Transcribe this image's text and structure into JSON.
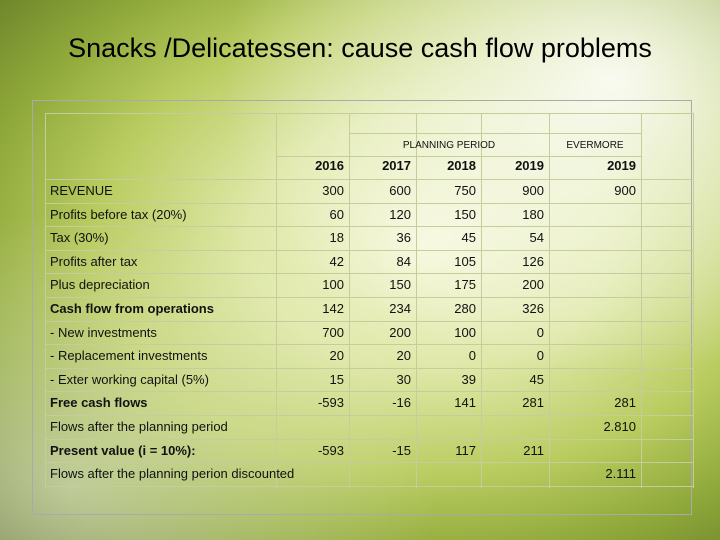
{
  "title": "Snacks /Delicatessen: cause cash flow problems",
  "table": {
    "group_headers": [
      {
        "label": "PLANNING PERIOD",
        "from": 1,
        "to": 3
      },
      {
        "label": "EVERMORE",
        "from": 4,
        "to": 4
      }
    ],
    "years": [
      "2016",
      "2017",
      "2018",
      "2019",
      "2019"
    ],
    "rows": [
      {
        "label": "REVENUE",
        "cells": [
          300,
          600,
          750,
          900,
          900
        ]
      },
      {
        "label": "Profits before tax (20%)",
        "cells": [
          60,
          120,
          150,
          180,
          null
        ]
      },
      {
        "label": "Tax (30%)",
        "cells": [
          18,
          36,
          45,
          54,
          null
        ]
      },
      {
        "label": "Profits after tax",
        "cells": [
          42,
          84,
          105,
          126,
          null
        ]
      },
      {
        "label": "Plus depreciation",
        "cells": [
          100,
          150,
          175,
          200,
          null
        ]
      },
      {
        "label": "Cash flow from operations",
        "bold": true,
        "cells": [
          142,
          234,
          280,
          326,
          null
        ]
      },
      {
        "label": "- New investments",
        "cells": [
          700,
          200,
          100,
          0,
          null
        ]
      },
      {
        "label": "- Replacement investments",
        "cells": [
          20,
          20,
          0,
          0,
          null
        ]
      },
      {
        "label": "- Exter working capital (5%)",
        "cells": [
          15,
          30,
          39,
          45,
          null
        ]
      },
      {
        "label": "Free cash flows",
        "bold": true,
        "cells": [
          -593,
          -16,
          141,
          281,
          281
        ]
      },
      {
        "label": "Flows after the planning period",
        "cells": [
          null,
          null,
          null,
          null,
          "2.810"
        ]
      },
      {
        "label": "Present value (i = 10%):",
        "bold": true,
        "cells": [
          -593,
          -15,
          117,
          211,
          null
        ]
      },
      {
        "label": "Flows after the planning perion discounted",
        "cells": [
          null,
          null,
          null,
          null,
          "2.111"
        ]
      }
    ]
  }
}
